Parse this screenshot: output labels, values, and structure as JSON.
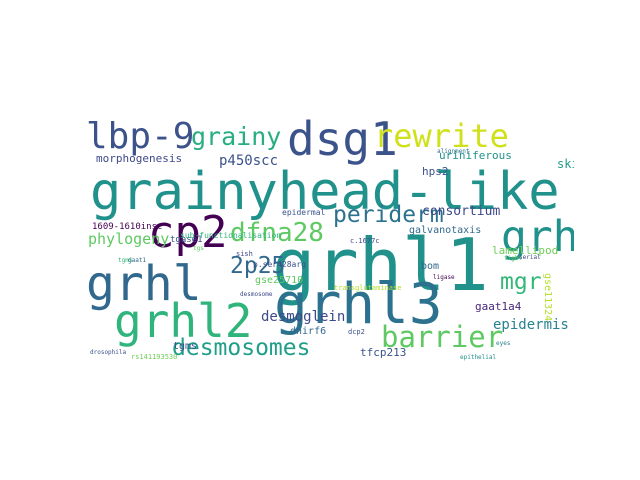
{
  "colors": {
    "background": "#ffffff",
    "palette": [
      "#440154",
      "#3b528b",
      "#21918c",
      "#5ec962",
      "#fde725"
    ]
  },
  "words": [
    {
      "text": "grhl1",
      "color": "#21918c"
    },
    {
      "text": "grainyhead-like",
      "color": "#21918c"
    },
    {
      "text": "grhl3",
      "color": "#2c728e"
    },
    {
      "text": "grhl2",
      "color": "#2fb47c"
    },
    {
      "text": "grhl",
      "color": "#31688e"
    },
    {
      "text": "dsg1",
      "color": "#3b528b"
    },
    {
      "text": "cp2",
      "color": "#440154"
    },
    {
      "text": "lbp-9",
      "color": "#3b528b"
    },
    {
      "text": "rewrite",
      "color": "#d0e11c"
    },
    {
      "text": "grainy",
      "color": "#28ae80"
    },
    {
      "text": "grh",
      "color": "#21918c"
    },
    {
      "text": "dfna28",
      "color": "#5ec962"
    },
    {
      "text": "periderm",
      "color": "#2c728e"
    },
    {
      "text": "barrier",
      "color": "#5ec962"
    },
    {
      "text": "desmosomes",
      "color": "#1f9e89"
    },
    {
      "text": "2p25",
      "color": "#31688e"
    },
    {
      "text": "mgr",
      "color": "#35b779"
    },
    {
      "text": "p450scc",
      "color": "#3b528b"
    },
    {
      "text": "desmoglein",
      "color": "#3e4989"
    },
    {
      "text": "phylogeny",
      "color": "#5ec962"
    },
    {
      "text": "epidermis",
      "color": "#26828e"
    },
    {
      "text": "consortium",
      "color": "#3e4989"
    },
    {
      "text": "skin",
      "color": "#1f9e89"
    },
    {
      "text": "morphogenesis",
      "color": "#3e4989"
    },
    {
      "text": "uriniferous",
      "color": "#21918c"
    },
    {
      "text": "lamellipod",
      "color": "#6ece58"
    },
    {
      "text": "gaat1a4",
      "color": "#482878"
    },
    {
      "text": "tfcp213",
      "color": "#3b528b"
    },
    {
      "text": "hps2",
      "color": "#3b528b"
    },
    {
      "text": "dnirf6",
      "color": "#31688e"
    },
    {
      "text": "galvanotaxis",
      "color": "#31688e"
    },
    {
      "text": "bom",
      "color": "#31688e"
    },
    {
      "text": "1609-1610insc",
      "color": "#440154"
    },
    {
      "text": "tgase1",
      "color": "#3b528b"
    },
    {
      "text": "gse25710",
      "color": "#5ec962"
    },
    {
      "text": "gse11324",
      "color": "#b5de2b"
    },
    {
      "text": "tgms",
      "color": "#3b528b"
    },
    {
      "text": "sub-functionalisation",
      "color": "#2fb47c"
    },
    {
      "text": "epidermal",
      "color": "#3b528b"
    },
    {
      "text": "p.ser428arg",
      "color": "#3b528b"
    },
    {
      "text": "c.1677c",
      "color": "#3e4989"
    },
    {
      "text": "sish",
      "color": "#3e4989"
    },
    {
      "text": "dcp2",
      "color": "#3b528b"
    },
    {
      "text": "transglutaminase",
      "color": "#b5de2b"
    },
    {
      "text": "rs141193530",
      "color": "#6ece58"
    },
    {
      "text": "alignment",
      "color": "#2c728e"
    },
    {
      "text": "eyes",
      "color": "#26828e"
    },
    {
      "text": "tight",
      "color": "#5ec962"
    },
    {
      "text": "tgs",
      "color": "#5ec962"
    },
    {
      "text": "gaat1",
      "color": "#31688e"
    },
    {
      "text": "desmosome",
      "color": "#3e4989"
    },
    {
      "text": "drosophila",
      "color": "#3b528b"
    },
    {
      "text": "serial",
      "color": "#3e4989"
    },
    {
      "text": "tgmS",
      "color": "#35b779"
    },
    {
      "text": "epithelial",
      "color": "#21918c"
    },
    {
      "text": "ligase",
      "color": "#440154"
    }
  ]
}
